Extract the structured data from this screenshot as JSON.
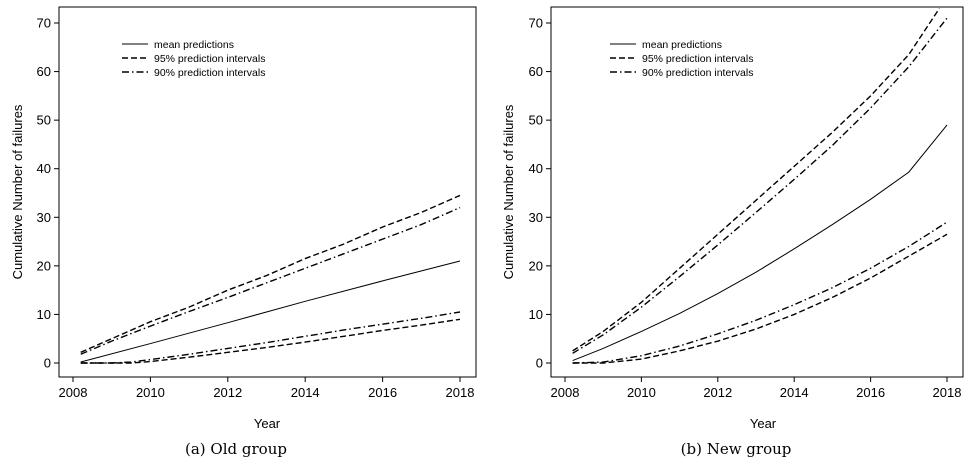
{
  "chart_data": [
    {
      "type": "line",
      "caption": "(a) Old group",
      "xlabel": "Year",
      "ylabel": "Cumulative Number of failures",
      "xlim": [
        2008,
        2018
      ],
      "ylim": [
        0,
        70
      ],
      "xticks": [
        2008,
        2010,
        2012,
        2014,
        2016,
        2018
      ],
      "yticks": [
        0,
        10,
        20,
        30,
        40,
        50,
        60,
        70
      ],
      "legend": {
        "placement": "top-left",
        "entries": [
          {
            "label": "mean predictions",
            "style": "solid"
          },
          {
            "label": "95% prediction intervals",
            "style": "dashed"
          },
          {
            "label": "90% prediction intervals",
            "style": "dashdot"
          }
        ]
      },
      "series": [
        {
          "name": "mean predictions",
          "style": "solid",
          "points": [
            [
              2008.2,
              0.2
            ],
            [
              2010,
              4.0
            ],
            [
              2012,
              8.3
            ],
            [
              2014,
              12.7
            ],
            [
              2016,
              16.9
            ],
            [
              2018,
              21.0
            ]
          ]
        },
        {
          "name": "95% prediction intervals",
          "style": "dashed",
          "points": [
            [
              2008.2,
              2.2
            ],
            [
              2009,
              5.0
            ],
            [
              2010,
              8.5
            ],
            [
              2011,
              11.5
            ],
            [
              2012,
              15.0
            ],
            [
              2013,
              18.0
            ],
            [
              2014,
              21.5
            ],
            [
              2015,
              24.5
            ],
            [
              2016,
              28.0
            ],
            [
              2017,
              31.0
            ],
            [
              2018,
              34.5
            ]
          ]
        },
        {
          "name": "95% prediction intervals",
          "style": "dashed",
          "points": [
            [
              2008.2,
              0.0
            ],
            [
              2009,
              0.0
            ],
            [
              2009.5,
              0.0
            ],
            [
              2010,
              0.3
            ],
            [
              2011,
              1.2
            ],
            [
              2012,
              2.2
            ],
            [
              2013,
              3.2
            ],
            [
              2014,
              4.3
            ],
            [
              2015,
              5.5
            ],
            [
              2016,
              6.7
            ],
            [
              2017,
              7.8
            ],
            [
              2018,
              9.0
            ]
          ]
        },
        {
          "name": "90% prediction intervals",
          "style": "dashdot",
          "points": [
            [
              2008.2,
              1.8
            ],
            [
              2009,
              4.5
            ],
            [
              2010,
              7.6
            ],
            [
              2011,
              10.6
            ],
            [
              2012,
              13.5
            ],
            [
              2013,
              16.5
            ],
            [
              2014,
              19.5
            ],
            [
              2015,
              22.5
            ],
            [
              2016,
              25.5
            ],
            [
              2017,
              28.5
            ],
            [
              2018,
              32.0
            ]
          ]
        },
        {
          "name": "90% prediction intervals",
          "style": "dashdot",
          "points": [
            [
              2008.2,
              0.0
            ],
            [
              2009,
              0.0
            ],
            [
              2009.5,
              0.2
            ],
            [
              2010,
              0.7
            ],
            [
              2011,
              1.8
            ],
            [
              2012,
              3.0
            ],
            [
              2013,
              4.2
            ],
            [
              2014,
              5.5
            ],
            [
              2015,
              6.8
            ],
            [
              2016,
              8.0
            ],
            [
              2017,
              9.2
            ],
            [
              2018,
              10.5
            ]
          ]
        }
      ]
    },
    {
      "type": "line",
      "caption": "(b) New group",
      "xlabel": "Year",
      "ylabel": "Cumulative Number of failures",
      "xlim": [
        2008,
        2018
      ],
      "ylim": [
        0,
        70
      ],
      "xticks": [
        2008,
        2010,
        2012,
        2014,
        2016,
        2018
      ],
      "yticks": [
        0,
        10,
        20,
        30,
        40,
        50,
        60,
        70
      ],
      "legend": {
        "placement": "top-left",
        "entries": [
          {
            "label": "mean predictions",
            "style": "solid"
          },
          {
            "label": "95% prediction intervals",
            "style": "dashed"
          },
          {
            "label": "90% prediction intervals",
            "style": "dashdot"
          }
        ]
      },
      "series": [
        {
          "name": "mean predictions",
          "style": "solid",
          "points": [
            [
              2008.2,
              0.5
            ],
            [
              2009,
              3.0
            ],
            [
              2010,
              6.5
            ],
            [
              2011,
              10.2
            ],
            [
              2012,
              14.3
            ],
            [
              2013,
              18.7
            ],
            [
              2014,
              23.5
            ],
            [
              2015,
              28.5
            ],
            [
              2016,
              33.7
            ],
            [
              2017,
              39.3
            ],
            [
              2018,
              49.0
            ]
          ]
        },
        {
          "name": "95% prediction intervals",
          "style": "dashed",
          "points": [
            [
              2008.2,
              2.5
            ],
            [
              2009,
              6.5
            ],
            [
              2010,
              12.5
            ],
            [
              2011,
              19.5
            ],
            [
              2012,
              26.5
            ],
            [
              2013,
              33.5
            ],
            [
              2014,
              40.5
            ],
            [
              2015,
              47.5
            ],
            [
              2016,
              55.0
            ],
            [
              2017,
              63.5
            ],
            [
              2017.8,
              73.0
            ]
          ]
        },
        {
          "name": "95% prediction intervals",
          "style": "dashed",
          "points": [
            [
              2008.2,
              0.0
            ],
            [
              2009,
              0.0
            ],
            [
              2010,
              0.8
            ],
            [
              2011,
              2.5
            ],
            [
              2012,
              4.5
            ],
            [
              2013,
              7.0
            ],
            [
              2014,
              10.0
            ],
            [
              2015,
              13.5
            ],
            [
              2016,
              17.5
            ],
            [
              2017,
              22.0
            ],
            [
              2018,
              26.5
            ]
          ]
        },
        {
          "name": "90% prediction intervals",
          "style": "dashdot",
          "points": [
            [
              2008.2,
              2.0
            ],
            [
              2009,
              5.8
            ],
            [
              2010,
              11.5
            ],
            [
              2011,
              17.8
            ],
            [
              2012,
              24.3
            ],
            [
              2013,
              31.0
            ],
            [
              2014,
              37.8
            ],
            [
              2015,
              44.8
            ],
            [
              2016,
              52.5
            ],
            [
              2017,
              61.0
            ],
            [
              2018,
              71.0
            ]
          ]
        },
        {
          "name": "90% prediction intervals",
          "style": "dashdot",
          "points": [
            [
              2008.2,
              0.0
            ],
            [
              2009,
              0.2
            ],
            [
              2010,
              1.5
            ],
            [
              2011,
              3.5
            ],
            [
              2012,
              6.0
            ],
            [
              2013,
              8.8
            ],
            [
              2014,
              12.0
            ],
            [
              2015,
              15.5
            ],
            [
              2016,
              19.5
            ],
            [
              2017,
              24.0
            ],
            [
              2018,
              29.0
            ]
          ]
        }
      ]
    }
  ]
}
